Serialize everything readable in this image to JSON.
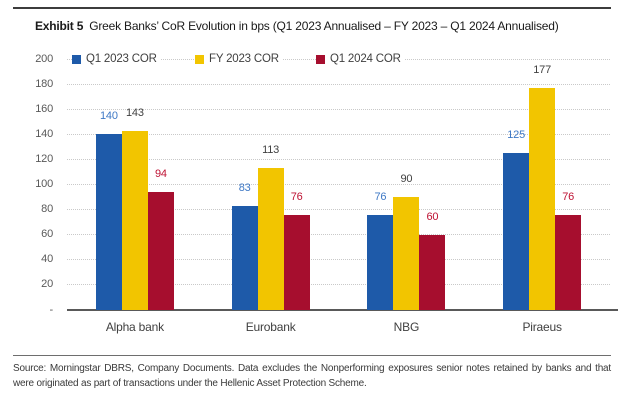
{
  "title": {
    "prefix": "Exhibit 5",
    "text": "Greek Banks’ CoR Evolution in bps (Q1 2023 Annualised – FY 2023 – Q1 2024 Annualised)"
  },
  "chart_data": {
    "type": "bar",
    "title": "Greek Banks’ CoR Evolution in bps (Q1 2023 Annualised – FY 2023 – Q1 2024 Annualised)",
    "categories": [
      "Alpha bank",
      "Eurobank",
      "NBG",
      "Piraeus"
    ],
    "series": [
      {
        "name": "Q1 2023 COR",
        "color": "#1E5AA9",
        "label_color": "#3E78C5",
        "values": [
          140,
          83,
          76,
          125
        ]
      },
      {
        "name": "FY 2023 COR",
        "color": "#F2C500",
        "label_color": "#404040",
        "values": [
          143,
          113,
          90,
          177
        ]
      },
      {
        "name": "Q1 2024 COR",
        "color": "#A60E2E",
        "label_color": "#BE1233",
        "values": [
          94,
          76,
          60,
          76
        ]
      }
    ],
    "xlabel": "",
    "ylabel": "",
    "ylim": [
      0,
      200
    ],
    "ytick_step": 20,
    "ytick_labels": [
      "-",
      "20",
      "40",
      "60",
      "80",
      "100",
      "120",
      "140",
      "160",
      "180",
      "200"
    ],
    "grid": true,
    "grid_style": "dotted horizontal",
    "legend_position": "top inside plot, horizontal"
  },
  "colors": {
    "axis_gray": "#595959",
    "grid_gray": "#c9c9c9",
    "text_dark": "#404040"
  },
  "footer": {
    "line1": "Source: Morningstar DBRS, Company Documents. Data excludes the Nonperforming exposures senior notes retained by banks and that",
    "line2": "were originated as part of transactions under the Hellenic Asset Protection Scheme."
  }
}
